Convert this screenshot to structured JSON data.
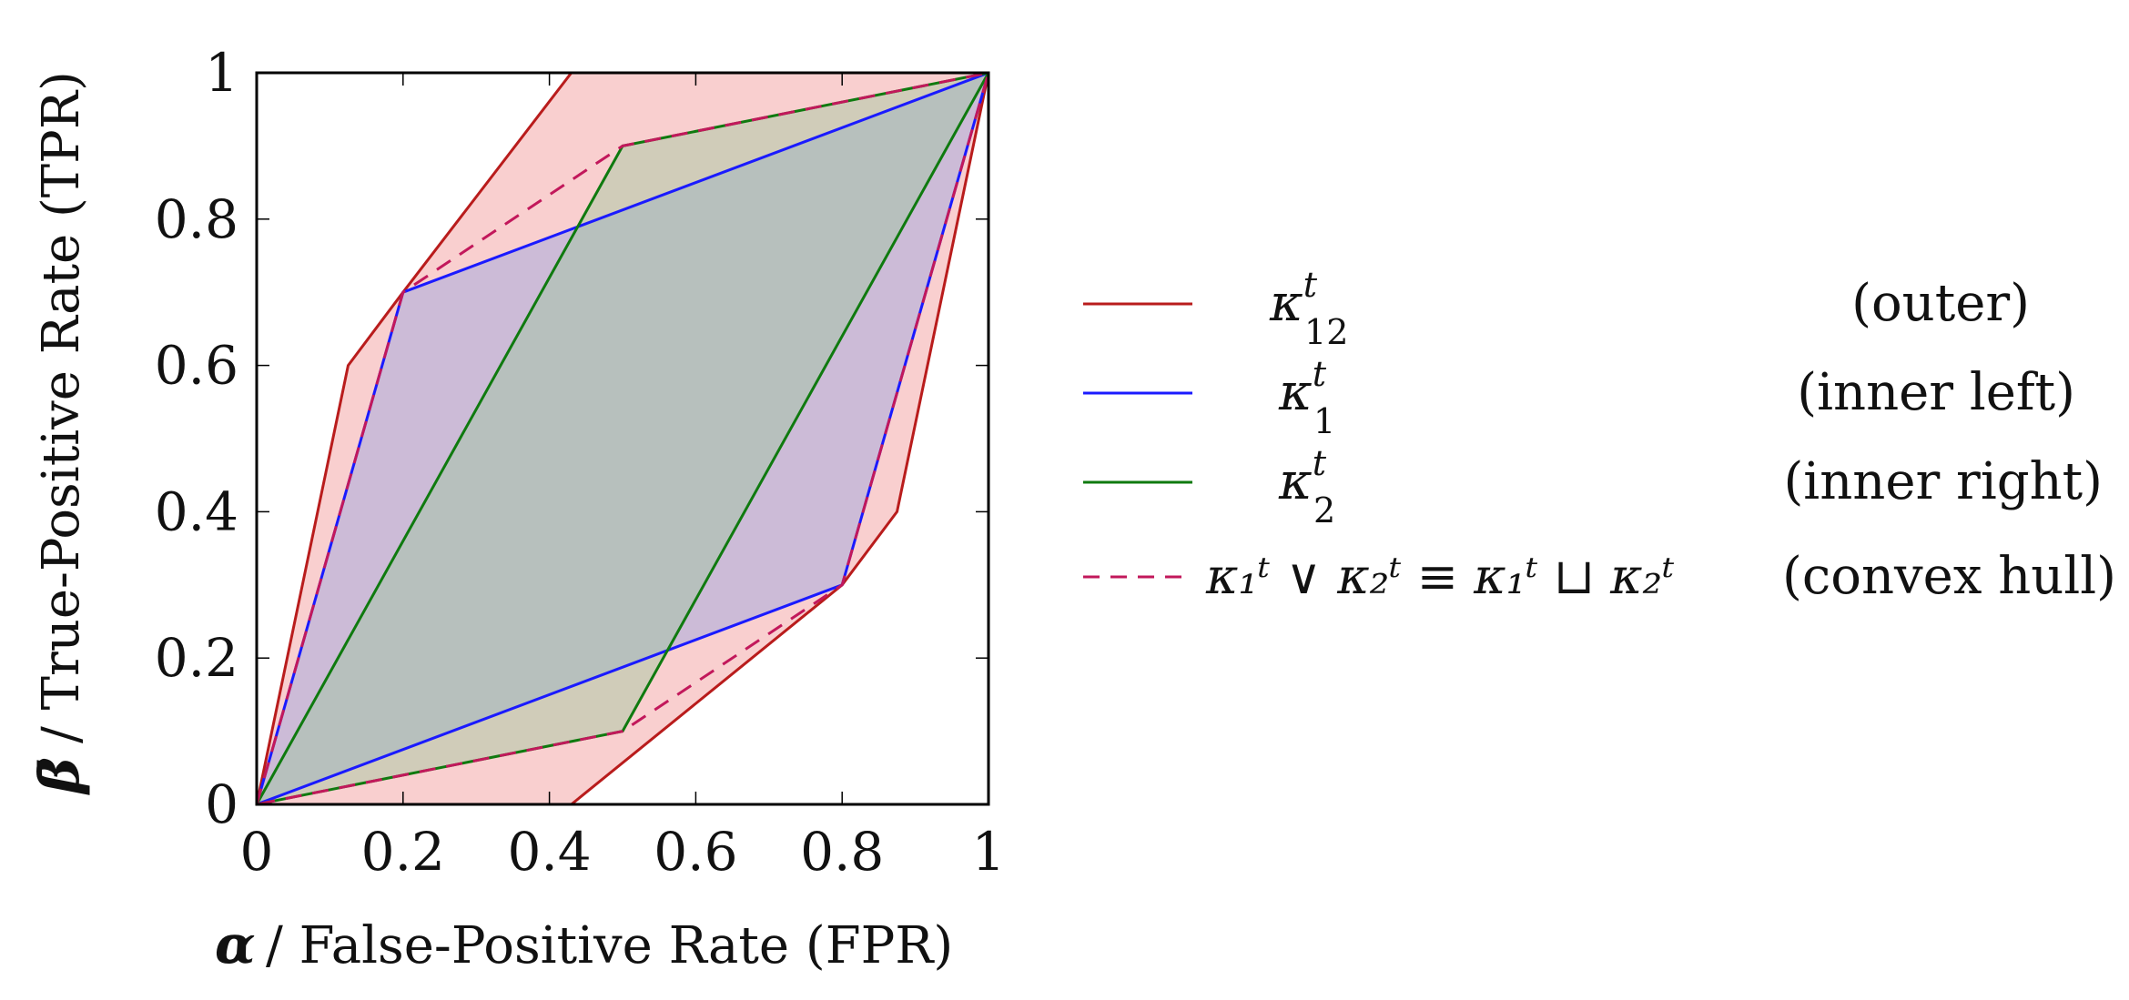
{
  "chart_data": {
    "type": "area",
    "xlabel": "/ False-Positive Rate (FPR)",
    "xlabel_symbol": "α",
    "ylabel": "/ True-Positive Rate (TPR)",
    "ylabel_symbol": "β̄",
    "xlim": [
      0,
      1
    ],
    "ylim": [
      0,
      1
    ],
    "xticks": [
      "0",
      "0.2",
      "0.4",
      "0.6",
      "0.8",
      "1"
    ],
    "yticks": [
      "0",
      "0.2",
      "0.4",
      "0.6",
      "0.8",
      "1"
    ],
    "xtick_values": [
      0,
      0.2,
      0.4,
      0.6,
      0.8,
      1
    ],
    "ytick_values": [
      0,
      0.2,
      0.4,
      0.6,
      0.8,
      1
    ],
    "legend_position": "right",
    "series": [
      {
        "name": "kappa_12",
        "legend_symbol": "κ",
        "legend_sup": "t",
        "legend_sub": "12",
        "description": "(outer)",
        "color": "#b91c1c",
        "fill": "#f4a7a7",
        "dash": false,
        "points": [
          [
            0,
            0
          ],
          [
            0.125,
            0.6
          ],
          [
            0.2,
            0.7
          ],
          [
            0.43,
            1
          ],
          [
            1,
            1
          ],
          [
            0.875,
            0.4
          ],
          [
            0.8,
            0.3
          ],
          [
            0.43,
            0
          ],
          [
            0,
            0
          ]
        ]
      },
      {
        "name": "kappa_1",
        "legend_symbol": "κ",
        "legend_sup": "t",
        "legend_sub": "1",
        "description": "(inner left)",
        "color": "#1a1aff",
        "fill": "#9fa8e0",
        "dash": false,
        "points": [
          [
            0,
            0
          ],
          [
            0.2,
            0.7
          ],
          [
            1,
            1
          ],
          [
            0.8,
            0.3
          ],
          [
            0,
            0
          ]
        ]
      },
      {
        "name": "kappa_2",
        "legend_symbol": "κ",
        "legend_sup": "t",
        "legend_sub": "2",
        "description": "(inner right)",
        "color": "#0f7a0f",
        "fill": "#9dc79d",
        "dash": false,
        "points": [
          [
            0,
            0
          ],
          [
            0.5,
            0.9
          ],
          [
            1,
            1
          ],
          [
            0.5,
            0.1
          ],
          [
            0,
            0
          ]
        ]
      },
      {
        "name": "convex_hull",
        "legend_expression": "κ₁ᵗ ∨ κ₂ᵗ ≡ κ₁ᵗ ⊔ κ₂ᵗ",
        "description": "(convex hull)",
        "color": "#c2185b",
        "fill": "#e08fb0",
        "dash": true,
        "points": [
          [
            0,
            0
          ],
          [
            0.2,
            0.7
          ],
          [
            0.5,
            0.9
          ],
          [
            1,
            1
          ],
          [
            0.8,
            0.3
          ],
          [
            0.5,
            0.1
          ],
          [
            0,
            0
          ]
        ]
      }
    ]
  }
}
